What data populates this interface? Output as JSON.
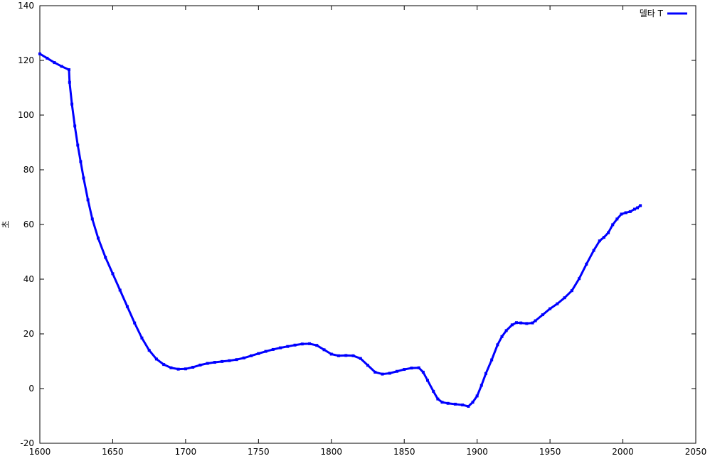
{
  "chart_data": {
    "type": "line",
    "title": "",
    "xlabel": "",
    "ylabel": "초",
    "xlim": [
      1600,
      2050
    ],
    "ylim": [
      -20,
      140
    ],
    "xticks": [
      1600,
      1650,
      1700,
      1750,
      1800,
      1850,
      1900,
      1950,
      2000,
      2050
    ],
    "yticks": [
      -20,
      0,
      20,
      40,
      60,
      80,
      100,
      120,
      140
    ],
    "grid": false,
    "legend_position": "top-right",
    "series": [
      {
        "name": "델타 T",
        "color": "#0000ff",
        "points": [
          [
            1600,
            122.4
          ],
          [
            1605,
            120.8
          ],
          [
            1610,
            119.2
          ],
          [
            1615,
            117.8
          ],
          [
            1620,
            116.6
          ],
          [
            1620.4,
            112
          ],
          [
            1622,
            104
          ],
          [
            1624,
            96
          ],
          [
            1626,
            89
          ],
          [
            1628,
            83
          ],
          [
            1630,
            77
          ],
          [
            1633,
            69
          ],
          [
            1636,
            62
          ],
          [
            1640,
            55
          ],
          [
            1645,
            48
          ],
          [
            1650,
            42
          ],
          [
            1655,
            36
          ],
          [
            1660,
            30
          ],
          [
            1665,
            24
          ],
          [
            1670,
            18.5
          ],
          [
            1675,
            14
          ],
          [
            1680,
            10.8
          ],
          [
            1685,
            8.8
          ],
          [
            1690,
            7.6
          ],
          [
            1695,
            7.1
          ],
          [
            1700,
            7.2
          ],
          [
            1705,
            7.8
          ],
          [
            1710,
            8.6
          ],
          [
            1715,
            9.2
          ],
          [
            1720,
            9.6
          ],
          [
            1725,
            9.9
          ],
          [
            1730,
            10.2
          ],
          [
            1735,
            10.6
          ],
          [
            1740,
            11.2
          ],
          [
            1745,
            12
          ],
          [
            1750,
            12.8
          ],
          [
            1755,
            13.6
          ],
          [
            1760,
            14.3
          ],
          [
            1765,
            14.9
          ],
          [
            1770,
            15.4
          ],
          [
            1775,
            15.9
          ],
          [
            1780,
            16.3
          ],
          [
            1785,
            16.4
          ],
          [
            1790,
            15.8
          ],
          [
            1795,
            14.2
          ],
          [
            1800,
            12.6
          ],
          [
            1805,
            12
          ],
          [
            1810,
            12.1
          ],
          [
            1815,
            12
          ],
          [
            1820,
            11
          ],
          [
            1825,
            8.5
          ],
          [
            1830,
            6
          ],
          [
            1835,
            5.3
          ],
          [
            1840,
            5.6
          ],
          [
            1845,
            6.3
          ],
          [
            1850,
            7
          ],
          [
            1855,
            7.5
          ],
          [
            1860,
            7.6
          ],
          [
            1863,
            6
          ],
          [
            1866,
            3
          ],
          [
            1870,
            -1
          ],
          [
            1873,
            -3.8
          ],
          [
            1876,
            -5
          ],
          [
            1880,
            -5.4
          ],
          [
            1885,
            -5.7
          ],
          [
            1890,
            -6
          ],
          [
            1894,
            -6.5
          ],
          [
            1897,
            -5
          ],
          [
            1900,
            -2.7
          ],
          [
            1903,
            1.2
          ],
          [
            1906,
            5.5
          ],
          [
            1910,
            10.5
          ],
          [
            1914,
            16
          ],
          [
            1917,
            19
          ],
          [
            1920,
            21.2
          ],
          [
            1924,
            23.3
          ],
          [
            1927,
            24.1
          ],
          [
            1930,
            24
          ],
          [
            1934,
            23.8
          ],
          [
            1938,
            24
          ],
          [
            1940,
            24.8
          ],
          [
            1945,
            27
          ],
          [
            1950,
            29.2
          ],
          [
            1955,
            31
          ],
          [
            1960,
            33.2
          ],
          [
            1965,
            35.8
          ],
          [
            1970,
            40.2
          ],
          [
            1975,
            45.5
          ],
          [
            1980,
            50.5
          ],
          [
            1984,
            54
          ],
          [
            1987,
            55.3
          ],
          [
            1990,
            57
          ],
          [
            1993,
            59.9
          ],
          [
            1996,
            62
          ],
          [
            1999,
            63.8
          ],
          [
            2002,
            64.3
          ],
          [
            2005,
            64.7
          ],
          [
            2008,
            65.6
          ],
          [
            2010,
            66.1
          ],
          [
            2012,
            66.9
          ]
        ]
      }
    ]
  }
}
